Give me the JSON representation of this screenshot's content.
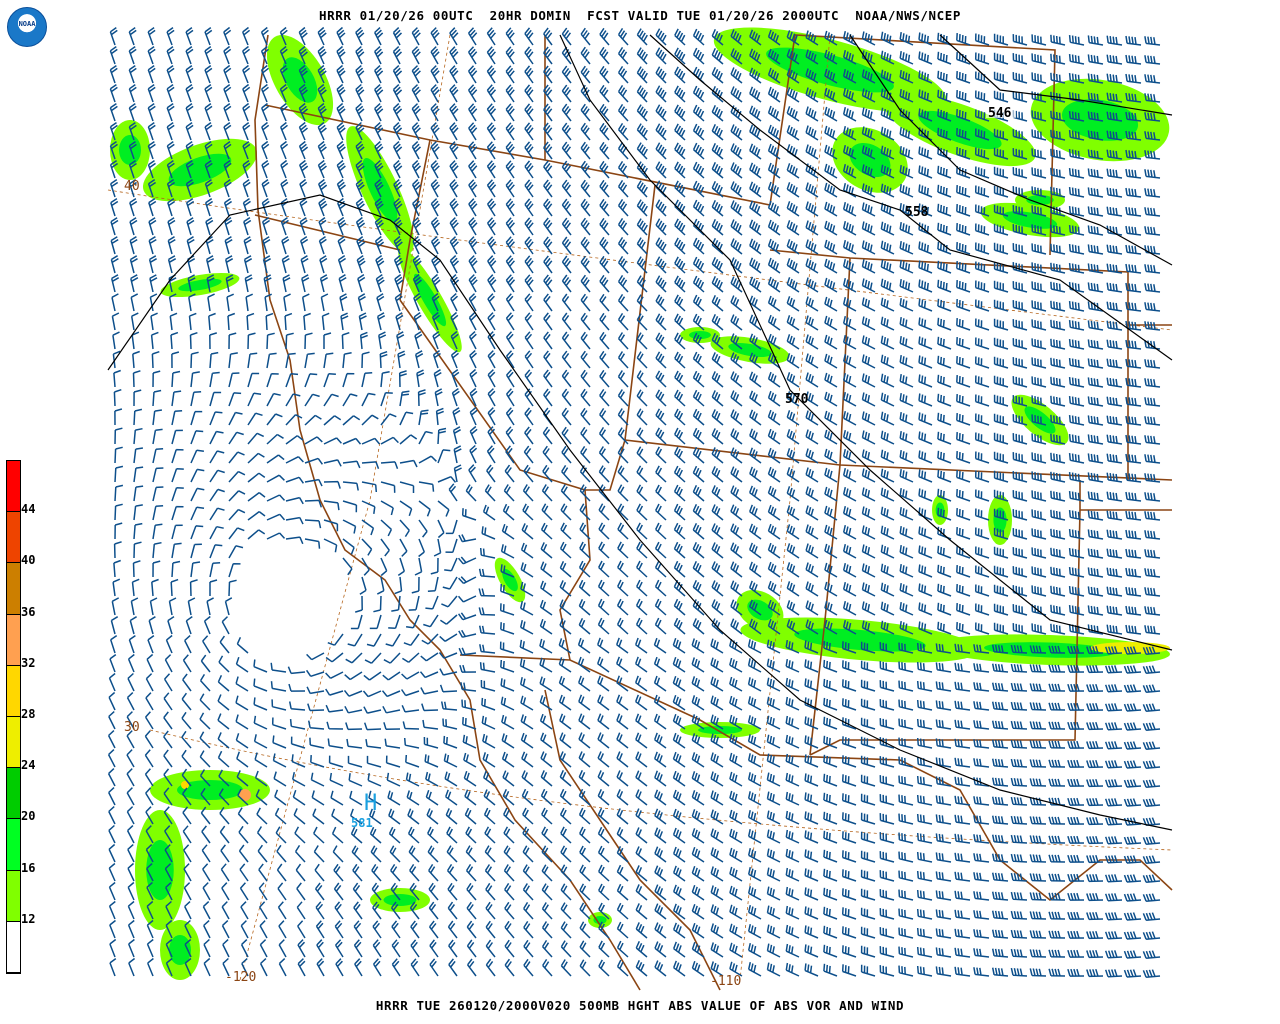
{
  "header": {
    "title": "HRRR 01/20/26 00UTC  20HR DOMIN  FCST VALID TUE 01/20/26 2000UTC  NOAA/NWS/NCEP"
  },
  "footer": {
    "caption": "HRRR TUE 260120/2000V020 500MB HGHT ABS VALUE OF ABS VOR AND WIND"
  },
  "logo": {
    "text": "NOAA"
  },
  "colorbar": {
    "labels": [
      "44",
      "40",
      "36",
      "32",
      "28",
      "24",
      "20",
      "16",
      "12"
    ],
    "colors": [
      "#ff0000",
      "#ee4400",
      "#cc7f00",
      "#ffa050",
      "#ffd700",
      "#eeee00",
      "#00cc00",
      "#00ff22",
      "#80ff00",
      "#ffffff"
    ]
  },
  "map": {
    "contour_labels": [
      "546",
      "558",
      "570"
    ],
    "high_label": "H",
    "high_value": "581",
    "lat_labels": [
      "40",
      "30"
    ],
    "lon_labels": [
      "-120",
      "-110"
    ],
    "colors": {
      "barb": "#0d4f8b",
      "border": "#8b4513",
      "contour": "#000000",
      "high": "#1aa0e0"
    }
  }
}
